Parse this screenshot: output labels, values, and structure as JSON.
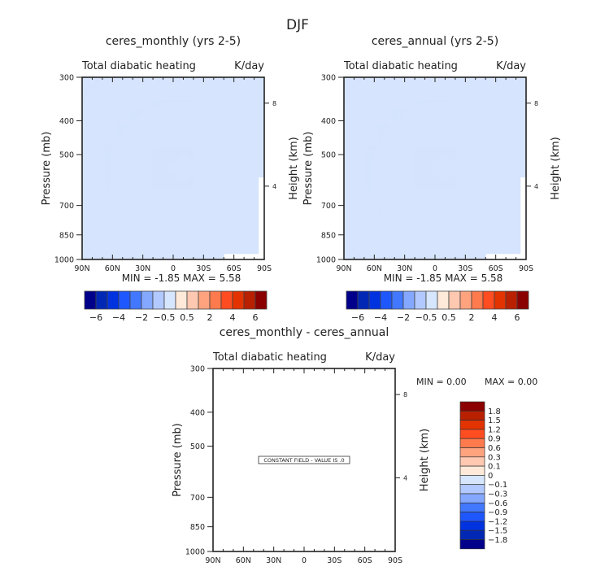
{
  "figure_title": "DJF",
  "chart_data": [
    {
      "type": "heatmap",
      "title": "ceres_monthly (yrs 2-5)",
      "subtitle_left": "Total diabatic heating",
      "subtitle_right": "K/day",
      "ylabel": "Pressure (mb)",
      "ylabel_right": "Height (km)",
      "x_ticks": [
        "90N",
        "60N",
        "30N",
        "0",
        "30S",
        "60S",
        "90S"
      ],
      "y_ticks": [
        "300",
        "400",
        "500",
        "700",
        "850",
        "1000"
      ],
      "y_ticks_right": [
        "8",
        "4"
      ],
      "ylim": [
        1000,
        300
      ],
      "xlim": [
        "90N",
        "90S"
      ],
      "stats": "MIN = -1.85   MAX = 5.58",
      "min": -1.85,
      "max": 5.58,
      "colorbar_labels": [
        "-6",
        "-4",
        "-2",
        "-0.5",
        "0.5",
        "2",
        "4",
        "6"
      ],
      "colorbar_orientation": "horizontal"
    },
    {
      "type": "heatmap",
      "title": "ceres_annual (yrs 2-5)",
      "subtitle_left": "Total diabatic heating",
      "subtitle_right": "K/day",
      "ylabel": "Pressure (mb)",
      "ylabel_right": "Height (km)",
      "x_ticks": [
        "90N",
        "60N",
        "30N",
        "0",
        "30S",
        "60S",
        "90S"
      ],
      "y_ticks": [
        "300",
        "400",
        "500",
        "700",
        "850",
        "1000"
      ],
      "y_ticks_right": [
        "8",
        "4"
      ],
      "ylim": [
        1000,
        300
      ],
      "xlim": [
        "90N",
        "90S"
      ],
      "stats": "MIN = -1.85   MAX = 5.58",
      "min": -1.85,
      "max": 5.58,
      "colorbar_labels": [
        "-6",
        "-4",
        "-2",
        "-0.5",
        "0.5",
        "2",
        "4",
        "6"
      ],
      "colorbar_orientation": "horizontal"
    },
    {
      "type": "heatmap",
      "title": "ceres_monthly - ceres_annual",
      "subtitle_left": "Total diabatic heating",
      "subtitle_right": "K/day",
      "ylabel": "Pressure (mb)",
      "ylabel_right": "Height (km)",
      "x_ticks": [
        "90N",
        "60N",
        "30N",
        "0",
        "30S",
        "60S",
        "90S"
      ],
      "y_ticks": [
        "300",
        "400",
        "500",
        "700",
        "850",
        "1000"
      ],
      "y_ticks_right": [
        "8",
        "4"
      ],
      "ylim": [
        1000,
        300
      ],
      "xlim": [
        "90N",
        "90S"
      ],
      "stats_min": "MIN =     0.00",
      "stats_max": "MAX =     0.00",
      "min": 0.0,
      "max": 0.0,
      "annotation": "CONSTANT FIELD - VALUE IS .0",
      "colorbar_labels": [
        "1.8",
        "1.5",
        "1.2",
        "0.9",
        "0.6",
        "0.3",
        "0.1",
        "0",
        "-0.1",
        "-0.3",
        "-0.6",
        "-0.9",
        "-1.2",
        "-1.5",
        "-1.8"
      ],
      "colorbar_orientation": "vertical"
    }
  ],
  "palette_main": [
    "#00008b",
    "#0028b4",
    "#0033e0",
    "#1f57ff",
    "#4178ff",
    "#84a8ff",
    "#b2c9ff",
    "#d6e6ff",
    "#ffe9d9",
    "#ffc8b0",
    "#ffa37f",
    "#ff7a4c",
    "#ff4c20",
    "#e23300",
    "#b82000",
    "#8b0000"
  ],
  "palette_diff": [
    "#8b0000",
    "#b82000",
    "#e23300",
    "#ff4c20",
    "#ff7a4c",
    "#ffa37f",
    "#ffc8b0",
    "#ffe9d9",
    "#d6e6ff",
    "#b2c9ff",
    "#84a8ff",
    "#4178ff",
    "#1f57ff",
    "#0033e0",
    "#0028b4",
    "#00008b"
  ]
}
